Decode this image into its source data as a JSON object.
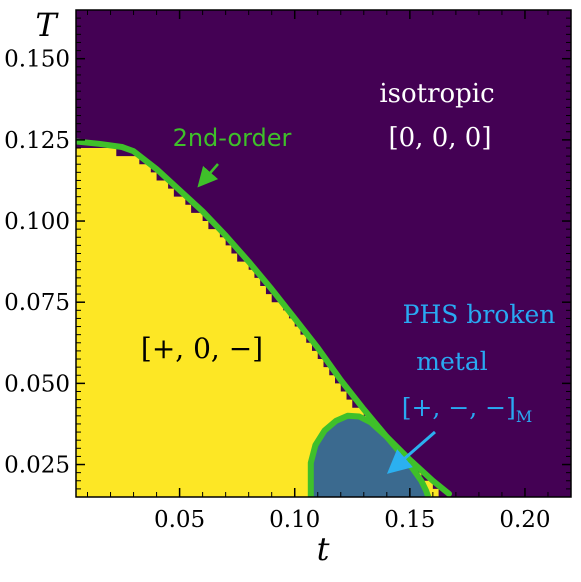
{
  "chart_data": {
    "type": "heatmap",
    "title": "",
    "xlabel": "t",
    "ylabel": "T",
    "xlim": [
      0.005,
      0.22
    ],
    "ylim": [
      0.015,
      0.165
    ],
    "x_ticks": [
      {
        "value": 0.05,
        "label": "0.05"
      },
      {
        "value": 0.1,
        "label": "0.10"
      },
      {
        "value": 0.15,
        "label": "0.15"
      },
      {
        "value": 0.2,
        "label": "0.20"
      }
    ],
    "y_ticks": [
      {
        "value": 0.025,
        "label": "0.025"
      },
      {
        "value": 0.05,
        "label": "0.050"
      },
      {
        "value": 0.075,
        "label": "0.075"
      },
      {
        "value": 0.1,
        "label": "0.100"
      },
      {
        "value": 0.125,
        "label": "0.125"
      },
      {
        "value": 0.15,
        "label": "0.150"
      }
    ],
    "colors": {
      "isotropic": "#440154",
      "ordered": "#fde725",
      "phs_broken": "#3b6a8f",
      "boundary": "#3fc02a",
      "annotation_arrow": "#2bb0f0",
      "label_light": "#ffffff",
      "label_dark": "#000000",
      "label_cyan": "#29a9f2"
    },
    "phases": [
      {
        "name": "isotropic",
        "label_line1": "isotropic",
        "label_line2": "[0, 0, 0]"
      },
      {
        "name": "ordered",
        "label": "[+, 0, −]"
      },
      {
        "name": "phs_broken",
        "label_line1": "PHS broken",
        "label_line2": "metal",
        "label_line3": "[+, −, −]",
        "label_subscript": "M"
      }
    ],
    "boundary_label": "2nd-order",
    "second_order_boundary": [
      [
        0.005,
        0.1245
      ],
      [
        0.015,
        0.1238
      ],
      [
        0.025,
        0.1228
      ],
      [
        0.03,
        0.1215
      ],
      [
        0.04,
        0.116
      ],
      [
        0.05,
        0.1095
      ],
      [
        0.06,
        0.103
      ],
      [
        0.07,
        0.0955
      ],
      [
        0.08,
        0.0875
      ],
      [
        0.09,
        0.079
      ],
      [
        0.1,
        0.07
      ],
      [
        0.11,
        0.061
      ],
      [
        0.12,
        0.051
      ],
      [
        0.13,
        0.042
      ],
      [
        0.14,
        0.0335
      ],
      [
        0.15,
        0.0265
      ],
      [
        0.16,
        0.02
      ],
      [
        0.167,
        0.016
      ]
    ],
    "phs_boundary": [
      [
        0.107,
        0.015
      ],
      [
        0.107,
        0.0255
      ],
      [
        0.109,
        0.031
      ],
      [
        0.113,
        0.0355
      ],
      [
        0.118,
        0.0385
      ],
      [
        0.123,
        0.04
      ],
      [
        0.128,
        0.0398
      ],
      [
        0.133,
        0.038
      ],
      [
        0.14,
        0.0335
      ],
      [
        0.146,
        0.0285
      ],
      [
        0.151,
        0.024
      ],
      [
        0.155,
        0.02
      ],
      [
        0.157,
        0.017
      ],
      [
        0.158,
        0.015
      ]
    ]
  }
}
